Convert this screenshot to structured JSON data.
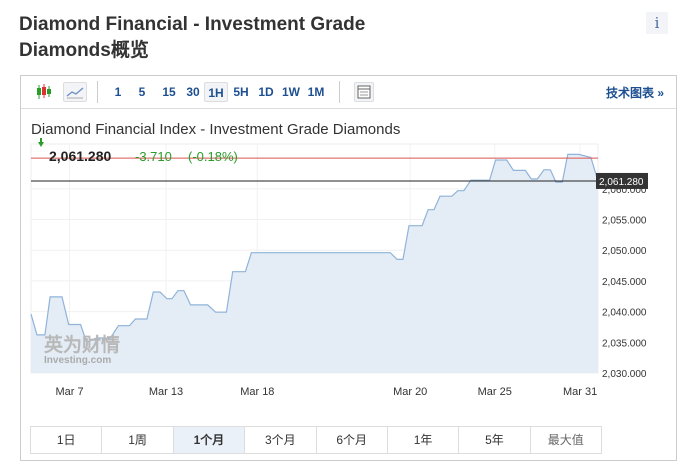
{
  "header": {
    "title": "Diamond Financial - Investment Grade Diamonds概览",
    "info_label": "i"
  },
  "toolbar": {
    "intervals": [
      "1",
      "5",
      "15",
      "30",
      "1H",
      "5H",
      "1D",
      "1W",
      "1M"
    ],
    "selected_interval": "1H",
    "tech_chart_label": "技术图表 »"
  },
  "quote": {
    "price": "2,061.280",
    "change": "-3.710",
    "change_pct": "(-0.18%)",
    "price_tag": "2,061.280"
  },
  "ranges": {
    "items": [
      "1日",
      "1周",
      "1个月",
      "3个月",
      "6个月",
      "1年",
      "5年",
      "最大值"
    ],
    "selected": "1个月"
  },
  "watermark": {
    "cn": "英为财情",
    "en": "Investing.com"
  },
  "colors": {
    "line": "#8fb3d9",
    "area": "#e4edf6",
    "prev_close": "#d9534f",
    "down": "#2a9c2a"
  },
  "chart_data": {
    "type": "area",
    "title": "Diamond Financial Index - Investment Grade Diamonds",
    "xlim": [
      0,
      142.8
    ],
    "ylim": [
      2030,
      2067.3
    ],
    "yticks": [
      2030,
      2035,
      2040,
      2045,
      2050,
      2055,
      2060
    ],
    "ytick_labels": [
      "2,030.000",
      "2,035.000",
      "2,040.000",
      "2,045.000",
      "2,050.000",
      "2,055.000",
      "2,060.000"
    ],
    "xticks": [
      9.7,
      34,
      57,
      95.5,
      116.8,
      138.3
    ],
    "xtick_labels": [
      "Mar 7",
      "Mar 13",
      "Mar 18",
      "Mar 20",
      "Mar 25",
      "Mar 31"
    ],
    "prev_close": 2065.0,
    "last": 2061.28,
    "points": [
      [
        0,
        2039.6
      ],
      [
        1.5,
        2036.2
      ],
      [
        3.5,
        2036.2
      ],
      [
        4.8,
        2042.4
      ],
      [
        7.8,
        2042.4
      ],
      [
        9.5,
        2037.9
      ],
      [
        12.5,
        2037.9
      ],
      [
        14,
        2035
      ],
      [
        16.5,
        2035.7
      ],
      [
        20,
        2035.7
      ],
      [
        22,
        2037.7
      ],
      [
        24.8,
        2037.7
      ],
      [
        26.3,
        2038.8
      ],
      [
        29.2,
        2038.8
      ],
      [
        30.8,
        2043.2
      ],
      [
        32.5,
        2043.2
      ],
      [
        34.2,
        2042.1
      ],
      [
        35.5,
        2042.1
      ],
      [
        37,
        2043.4
      ],
      [
        38.5,
        2043.4
      ],
      [
        40.2,
        2041.1
      ],
      [
        44.5,
        2041.1
      ],
      [
        46.5,
        2039.9
      ],
      [
        49.2,
        2039.9
      ],
      [
        50.8,
        2046.5
      ],
      [
        54,
        2046.5
      ],
      [
        55.5,
        2049.6
      ],
      [
        90.5,
        2049.6
      ],
      [
        92.2,
        2048.5
      ],
      [
        93.7,
        2048.5
      ],
      [
        95.2,
        2054
      ],
      [
        98.5,
        2054
      ],
      [
        100,
        2056.6
      ],
      [
        101.5,
        2056.6
      ],
      [
        103,
        2058.8
      ],
      [
        106,
        2058.8
      ],
      [
        107.5,
        2059.7
      ],
      [
        109,
        2059.7
      ],
      [
        110.8,
        2061.4
      ],
      [
        115.5,
        2061.4
      ],
      [
        117,
        2064.7
      ],
      [
        119.8,
        2064.7
      ],
      [
        121.5,
        2063
      ],
      [
        124.5,
        2063
      ],
      [
        126,
        2061.6
      ],
      [
        127.5,
        2061.6
      ],
      [
        129.2,
        2063.1
      ],
      [
        130.8,
        2063.1
      ],
      [
        132.2,
        2061.1
      ],
      [
        133.8,
        2061.1
      ],
      [
        135.2,
        2065.6
      ],
      [
        138,
        2065.6
      ],
      [
        141,
        2065.1
      ],
      [
        142.8,
        2061.28
      ]
    ]
  }
}
